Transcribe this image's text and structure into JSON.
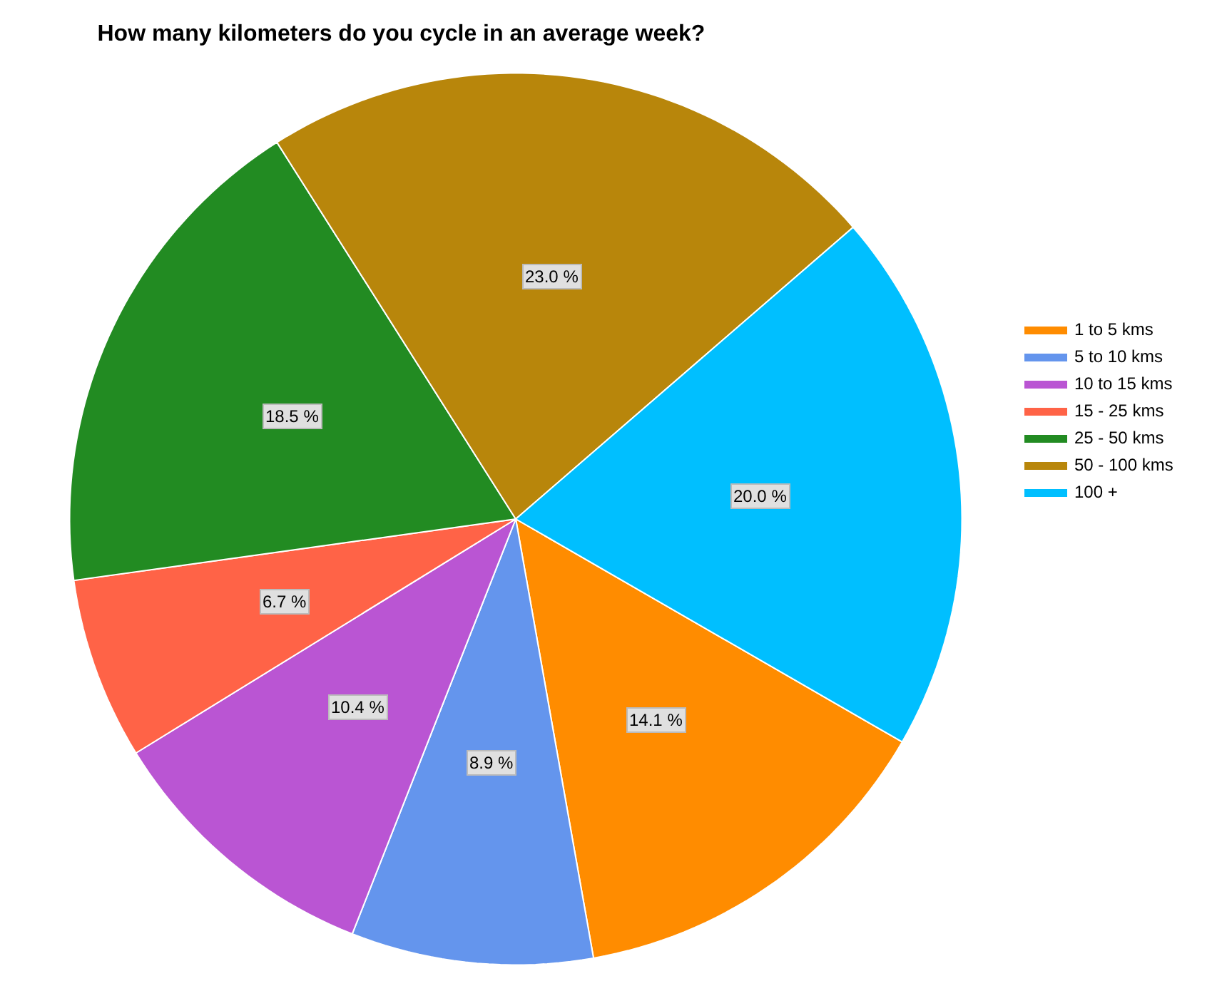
{
  "chart_data": {
    "type": "pie",
    "title": "How many kilometers do you cycle in an average week?",
    "categories": [
      "1 to 5 kms",
      "5 to 10 kms",
      "10 to 15 kms",
      "15 - 25 kms",
      "25 - 50 kms",
      "50 - 100 kms",
      "100 +"
    ],
    "values": [
      14.1,
      8.9,
      10.4,
      6.7,
      18.5,
      23.0,
      20.0
    ],
    "value_labels": [
      "14.1 %",
      "8.9 %",
      "10.4 %",
      "6.7 %",
      "18.5 %",
      "23.0 %",
      "20.0 %"
    ],
    "colors": [
      "#ff8c00",
      "#6495ed",
      "#ba55d3",
      "#ff6347",
      "#228b22",
      "#b8860b",
      "#00bfff"
    ],
    "legend": "right"
  }
}
